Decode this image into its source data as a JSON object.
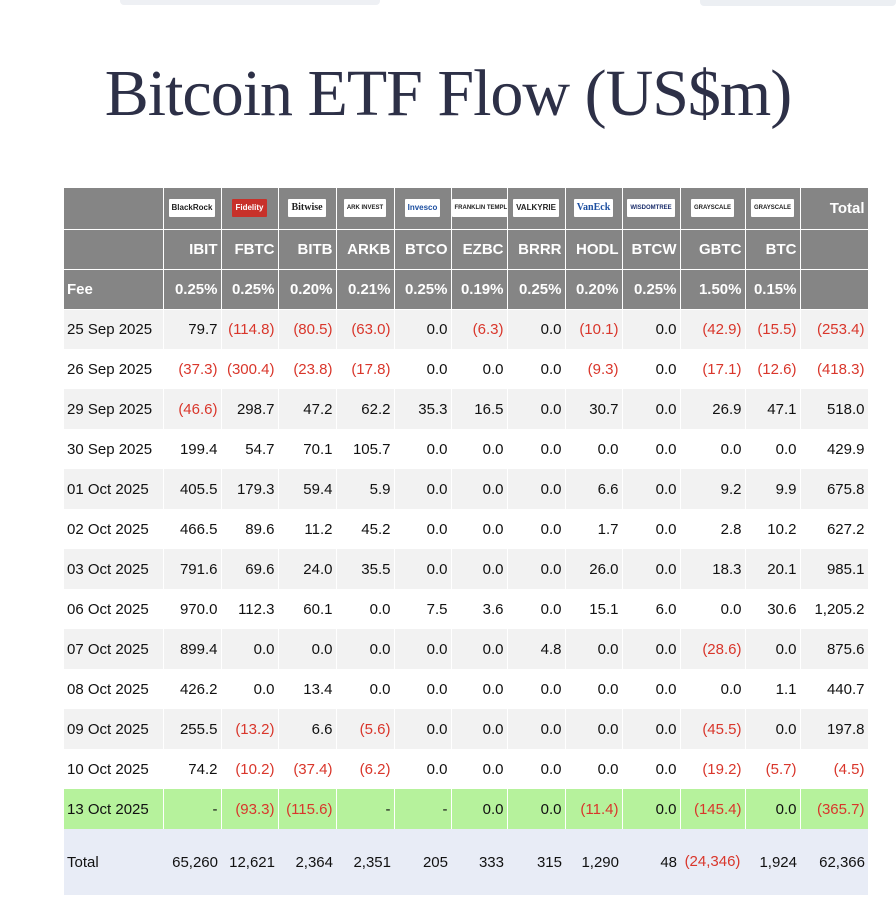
{
  "title": "Bitcoin ETF Flow (US$m)",
  "header": {
    "logos": [
      "BlackRock",
      "Fidelity",
      "Bitwise",
      "ARK INVEST",
      "Invesco",
      "FRANKLIN TEMPLETON",
      "VALKYRIE",
      "VanEck",
      "WISDOMTREE",
      "GRAYSCALE",
      "GRAYSCALE"
    ],
    "total_label": "Total",
    "tickers": [
      "IBIT",
      "FBTC",
      "BITB",
      "ARKB",
      "BTCO",
      "EZBC",
      "BRRR",
      "HODL",
      "BTCW",
      "GBTC",
      "BTC"
    ],
    "fee_label": "Fee",
    "fees": [
      "0.25%",
      "0.25%",
      "0.20%",
      "0.21%",
      "0.25%",
      "0.19%",
      "0.25%",
      "0.20%",
      "0.25%",
      "1.50%",
      "0.15%"
    ]
  },
  "rows": [
    {
      "date": "25 Sep 2025",
      "values": [
        "79.7",
        "(114.8)",
        "(80.5)",
        "(63.0)",
        "0.0",
        "(6.3)",
        "0.0",
        "(10.1)",
        "0.0",
        "(42.9)",
        "(15.5)",
        "(253.4)"
      ]
    },
    {
      "date": "26 Sep 2025",
      "values": [
        "(37.3)",
        "(300.4)",
        "(23.8)",
        "(17.8)",
        "0.0",
        "0.0",
        "0.0",
        "(9.3)",
        "0.0",
        "(17.1)",
        "(12.6)",
        "(418.3)"
      ]
    },
    {
      "date": "29 Sep 2025",
      "values": [
        "(46.6)",
        "298.7",
        "47.2",
        "62.2",
        "35.3",
        "16.5",
        "0.0",
        "30.7",
        "0.0",
        "26.9",
        "47.1",
        "518.0"
      ]
    },
    {
      "date": "30 Sep 2025",
      "values": [
        "199.4",
        "54.7",
        "70.1",
        "105.7",
        "0.0",
        "0.0",
        "0.0",
        "0.0",
        "0.0",
        "0.0",
        "0.0",
        "429.9"
      ]
    },
    {
      "date": "01 Oct 2025",
      "values": [
        "405.5",
        "179.3",
        "59.4",
        "5.9",
        "0.0",
        "0.0",
        "0.0",
        "6.6",
        "0.0",
        "9.2",
        "9.9",
        "675.8"
      ]
    },
    {
      "date": "02 Oct 2025",
      "values": [
        "466.5",
        "89.6",
        "11.2",
        "45.2",
        "0.0",
        "0.0",
        "0.0",
        "1.7",
        "0.0",
        "2.8",
        "10.2",
        "627.2"
      ]
    },
    {
      "date": "03 Oct 2025",
      "values": [
        "791.6",
        "69.6",
        "24.0",
        "35.5",
        "0.0",
        "0.0",
        "0.0",
        "26.0",
        "0.0",
        "18.3",
        "20.1",
        "985.1"
      ]
    },
    {
      "date": "06 Oct 2025",
      "values": [
        "970.0",
        "112.3",
        "60.1",
        "0.0",
        "7.5",
        "3.6",
        "0.0",
        "15.1",
        "6.0",
        "0.0",
        "30.6",
        "1,205.2"
      ]
    },
    {
      "date": "07 Oct 2025",
      "values": [
        "899.4",
        "0.0",
        "0.0",
        "0.0",
        "0.0",
        "0.0",
        "4.8",
        "0.0",
        "0.0",
        "(28.6)",
        "0.0",
        "875.6"
      ]
    },
    {
      "date": "08 Oct 2025",
      "values": [
        "426.2",
        "0.0",
        "13.4",
        "0.0",
        "0.0",
        "0.0",
        "0.0",
        "0.0",
        "0.0",
        "0.0",
        "1.1",
        "440.7"
      ]
    },
    {
      "date": "09 Oct 2025",
      "values": [
        "255.5",
        "(13.2)",
        "6.6",
        "(5.6)",
        "0.0",
        "0.0",
        "0.0",
        "0.0",
        "0.0",
        "(45.5)",
        "0.0",
        "197.8"
      ]
    },
    {
      "date": "10 Oct 2025",
      "values": [
        "74.2",
        "(10.2)",
        "(37.4)",
        "(6.2)",
        "0.0",
        "0.0",
        "0.0",
        "0.0",
        "0.0",
        "(19.2)",
        "(5.7)",
        "(4.5)"
      ]
    },
    {
      "date": "13 Oct 2025",
      "values": [
        "-",
        "(93.3)",
        "(115.6)",
        "-",
        "-",
        "0.0",
        "0.0",
        "(11.4)",
        "0.0",
        "(145.4)",
        "0.0",
        "(365.7)"
      ]
    }
  ],
  "total": {
    "label": "Total",
    "values": [
      "65,260",
      "12,621",
      "2,364",
      "2,351",
      "205",
      "333",
      "315",
      "1,290",
      "48",
      "(24,346)",
      "1,924",
      "62,366"
    ]
  },
  "colors": {
    "header_bg": "#858585",
    "negative": "#d9362b",
    "highlight_row": "#b6f29c",
    "total_row": "#e8ecf6"
  }
}
